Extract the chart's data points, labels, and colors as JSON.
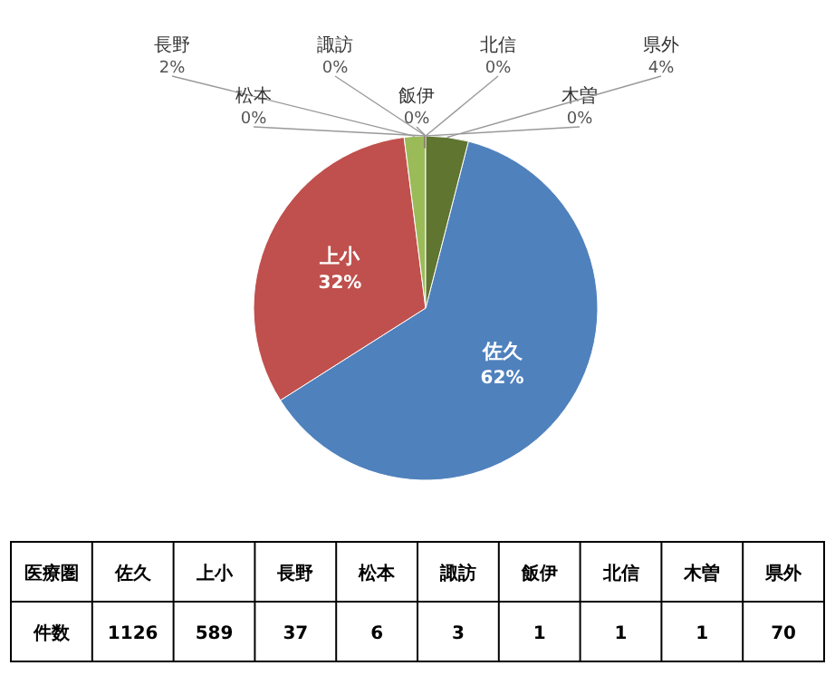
{
  "chart_data": [
    {
      "type": "pie",
      "categories": [
        "佐久",
        "上小",
        "長野",
        "松本",
        "諏訪",
        "飯伊",
        "北信",
        "木曽",
        "県外"
      ],
      "values": [
        62,
        32,
        2,
        0,
        0,
        0,
        0,
        0,
        4
      ],
      "value_labels": [
        "62%",
        "32%",
        "2%",
        "0%",
        "0%",
        "0%",
        "0%",
        "0%",
        "4%"
      ],
      "colors": [
        "#4f81bd",
        "#c0504d",
        "#9bbb59",
        "#8064a2",
        "#4bacc6",
        "#f79646",
        "#2c4d75",
        "#772c2a",
        "#5f7530"
      ]
    },
    {
      "type": "other",
      "categories": [
        "佐久",
        "上小",
        "長野",
        "松本",
        "諏訪",
        "飯伊",
        "北信",
        "木曽",
        "県外"
      ],
      "values": [
        1126,
        589,
        37,
        6,
        3,
        1,
        1,
        1,
        70
      ],
      "data_labels": true,
      "annotations": [
        "医療圏",
        "件数"
      ]
    }
  ]
}
